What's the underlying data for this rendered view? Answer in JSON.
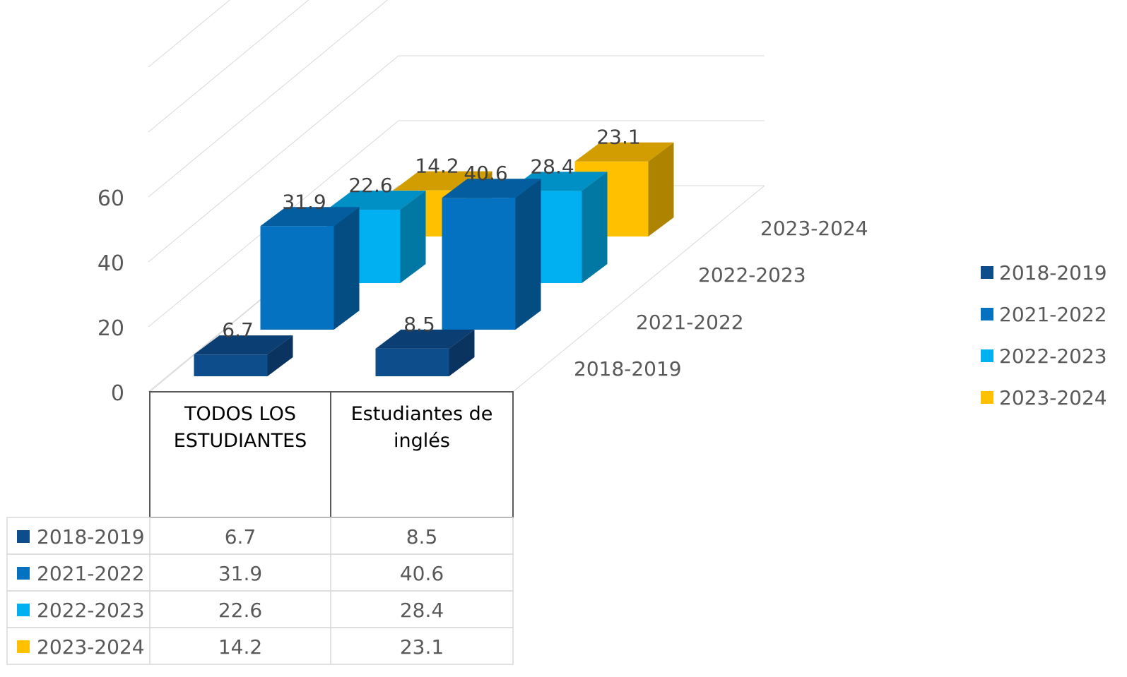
{
  "chart_data": {
    "type": "bar",
    "categories": [
      "TODOS LOS ESTUDIANTES",
      "Estudiantes de inglés"
    ],
    "category_lines": [
      [
        "TODOS LOS",
        "ESTUDIANTES"
      ],
      [
        "Estudiantes de",
        "inglés"
      ]
    ],
    "series": [
      {
        "name": "2018-2019",
        "values": [
          6.7,
          8.5
        ],
        "color": "#0e4d8c"
      },
      {
        "name": "2021-2022",
        "values": [
          31.9,
          40.6
        ],
        "color": "#0571c1"
      },
      {
        "name": "2022-2023",
        "values": [
          22.6,
          28.4
        ],
        "color": "#00b0f0"
      },
      {
        "name": "2023-2024",
        "values": [
          14.2,
          23.1
        ],
        "color": "#ffc000"
      }
    ],
    "value_labels": [
      [
        "6.7",
        "8.5"
      ],
      [
        "31.9",
        "40.6"
      ],
      [
        "22.6",
        "28.4"
      ],
      [
        "14.2",
        "23.1"
      ]
    ],
    "y_ticks": [
      "0",
      "20",
      "40",
      "60"
    ],
    "ylim": [
      0,
      60
    ],
    "chart_3d": true,
    "data_table": true,
    "gridlines": true,
    "legend_position": "right",
    "title": "",
    "xlabel": "",
    "ylabel": ""
  }
}
